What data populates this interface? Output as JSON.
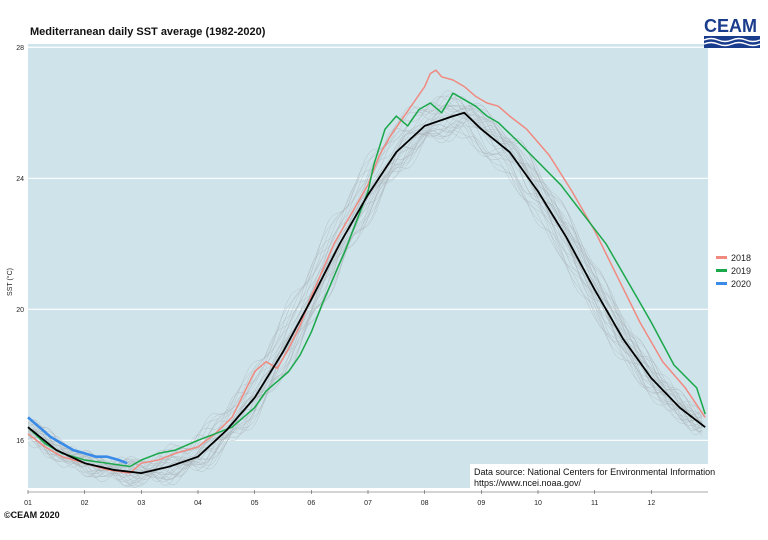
{
  "chart_data": {
    "type": "line",
    "title": "Mediterranean daily SST average (1982-2020)",
    "xlabel": "",
    "ylabel": "SST (°C)",
    "x_ticks": [
      "01",
      "02",
      "03",
      "04",
      "05",
      "06",
      "07",
      "08",
      "09",
      "10",
      "11",
      "12"
    ],
    "y_ticks": [
      16,
      20,
      24,
      28
    ],
    "ylim": [
      14.3,
      28.1
    ],
    "xlim": [
      1,
      13
    ],
    "grid": "horizontal",
    "legend_placement": "right",
    "background_color": "#cfe3ea",
    "series": [
      {
        "name": "2018",
        "color": "#f08a80",
        "x": [
          1.0,
          1.3,
          1.6,
          2.0,
          2.4,
          2.8,
          3.0,
          3.3,
          3.6,
          4.0,
          4.3,
          4.6,
          4.8,
          5.0,
          5.2,
          5.4,
          5.6,
          5.8,
          6.0,
          6.2,
          6.4,
          6.6,
          6.8,
          7.0,
          7.2,
          7.4,
          7.6,
          7.8,
          8.0,
          8.1,
          8.2,
          8.3,
          8.5,
          8.7,
          8.9,
          9.1,
          9.3,
          9.5,
          9.8,
          10.2,
          10.6,
          11.0,
          11.4,
          11.8,
          12.2,
          12.6,
          12.95
        ],
        "values": [
          16.2,
          15.8,
          15.5,
          15.3,
          15.1,
          15.0,
          15.3,
          15.4,
          15.6,
          15.8,
          16.2,
          16.7,
          17.4,
          18.1,
          18.4,
          18.2,
          18.8,
          19.5,
          20.4,
          21.2,
          22.0,
          22.6,
          23.2,
          23.8,
          24.7,
          25.3,
          25.8,
          26.3,
          26.8,
          27.2,
          27.3,
          27.1,
          27.0,
          26.8,
          26.5,
          26.3,
          26.2,
          25.9,
          25.5,
          24.7,
          23.6,
          22.4,
          21.0,
          19.6,
          18.4,
          17.6,
          16.7
        ]
      },
      {
        "name": "2019",
        "color": "#1aa84a",
        "x": [
          1.0,
          1.3,
          1.6,
          2.0,
          2.4,
          2.8,
          3.0,
          3.3,
          3.6,
          4.0,
          4.3,
          4.6,
          4.8,
          5.0,
          5.2,
          5.4,
          5.6,
          5.8,
          6.0,
          6.2,
          6.4,
          6.6,
          6.8,
          7.0,
          7.1,
          7.3,
          7.5,
          7.7,
          7.9,
          8.1,
          8.3,
          8.5,
          8.7,
          8.9,
          9.1,
          9.3,
          9.6,
          10.0,
          10.4,
          10.8,
          11.2,
          11.6,
          12.0,
          12.4,
          12.8,
          12.95
        ],
        "values": [
          16.4,
          15.9,
          15.6,
          15.4,
          15.3,
          15.2,
          15.4,
          15.6,
          15.7,
          16.0,
          16.2,
          16.4,
          16.7,
          17.0,
          17.5,
          17.8,
          18.1,
          18.6,
          19.3,
          20.2,
          21.0,
          21.8,
          22.7,
          23.6,
          24.4,
          25.5,
          25.9,
          25.6,
          26.1,
          26.3,
          26.0,
          26.6,
          26.4,
          26.2,
          25.9,
          25.7,
          25.2,
          24.5,
          23.8,
          22.9,
          22.0,
          20.8,
          19.6,
          18.3,
          17.6,
          16.8
        ]
      },
      {
        "name": "2020",
        "color": "#3a8ae8",
        "x": [
          1.0,
          1.2,
          1.4,
          1.6,
          1.8,
          2.0,
          2.2,
          2.4,
          2.6,
          2.75
        ],
        "values": [
          16.7,
          16.4,
          16.1,
          15.9,
          15.7,
          15.6,
          15.5,
          15.5,
          15.4,
          15.3
        ]
      },
      {
        "name": "",
        "color": "#000000",
        "x": [
          1.0,
          1.5,
          2.0,
          2.5,
          3.0,
          3.5,
          4.0,
          4.5,
          5.0,
          5.5,
          6.0,
          6.5,
          7.0,
          7.5,
          8.0,
          8.5,
          8.7,
          9.0,
          9.5,
          10.0,
          10.5,
          11.0,
          11.5,
          12.0,
          12.5,
          12.95
        ],
        "values": [
          16.4,
          15.7,
          15.3,
          15.1,
          15.0,
          15.2,
          15.5,
          16.3,
          17.3,
          18.7,
          20.3,
          22.0,
          23.5,
          24.8,
          25.6,
          25.9,
          26.0,
          25.5,
          24.8,
          23.6,
          22.2,
          20.6,
          19.1,
          17.9,
          17.0,
          16.4
        ]
      }
    ],
    "legend": [
      "2018",
      "2019",
      "2020"
    ],
    "annotation": {
      "source_line1": "Data source: National Centers for Environmental Information",
      "source_line2": "https://www.ncei.noaa.gov/"
    }
  },
  "logo": {
    "text": "CEAM",
    "color": "#1a3c8c"
  },
  "footer": {
    "copyright": "©CEAM 2020"
  }
}
